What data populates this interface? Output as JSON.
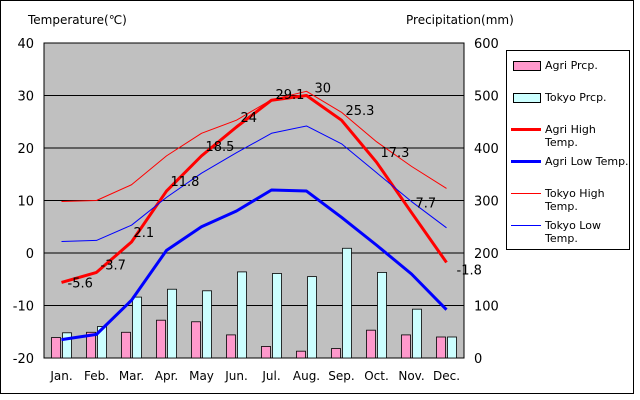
{
  "left_axis_title": "Temperature(℃)",
  "right_axis_title": "Precipitation(mm)",
  "chart_data": {
    "type": "bar+line",
    "categories": [
      "Jan.",
      "Feb.",
      "Mar.",
      "Apr.",
      "May",
      "Jun.",
      "Jul.",
      "Aug.",
      "Sep.",
      "Oct.",
      "Nov.",
      "Dec."
    ],
    "y_left": {
      "label": "Temperature(℃)",
      "range": [
        -20,
        40
      ],
      "ticks": [
        40,
        30,
        20,
        10,
        0,
        -10,
        -20
      ]
    },
    "y_right": {
      "label": "Precipitation(mm)",
      "range": [
        0,
        600
      ],
      "ticks": [
        600,
        500,
        400,
        300,
        200,
        100,
        0
      ]
    },
    "grid": true,
    "bars": [
      {
        "name": "Agri Prcp.",
        "axis": "right",
        "color": "#ff99cc",
        "values": [
          39,
          49,
          49,
          72,
          69,
          44,
          22,
          13,
          18,
          53,
          44,
          40
        ]
      },
      {
        "name": "Tokyo Prcp.",
        "axis": "right",
        "color": "#ccffff",
        "values": [
          48,
          60,
          116,
          131,
          128,
          164,
          161,
          155,
          209,
          163,
          93,
          40
        ]
      }
    ],
    "lines": [
      {
        "name": "Agri High Temp.",
        "axis": "left",
        "color": "#ff0000",
        "width": 3,
        "values": [
          -5.6,
          -3.7,
          2.1,
          11.8,
          18.5,
          24,
          29.1,
          30,
          25.3,
          17.3,
          7.7,
          -1.8
        ],
        "labeled": true
      },
      {
        "name": "Agri Low Temp.",
        "axis": "left",
        "color": "#0000ff",
        "width": 3,
        "values": [
          -16.5,
          -15.5,
          -9,
          0.5,
          5,
          8,
          12,
          11.8,
          6.8,
          1.5,
          -4,
          -10.8
        ]
      },
      {
        "name": "Tokyo High Temp.",
        "axis": "left",
        "color": "#ff0000",
        "width": 1,
        "values": [
          9.8,
          10,
          13,
          18.5,
          22.8,
          25.3,
          29.2,
          30.8,
          26.8,
          21.2,
          16.5,
          12.3
        ]
      },
      {
        "name": "Tokyo Low Temp.",
        "axis": "left",
        "color": "#0000ff",
        "width": 1,
        "values": [
          2.2,
          2.4,
          5.3,
          10.6,
          15.2,
          19.1,
          22.8,
          24.2,
          20.8,
          15.3,
          9.8,
          4.8
        ]
      }
    ],
    "legend_position": "right"
  }
}
